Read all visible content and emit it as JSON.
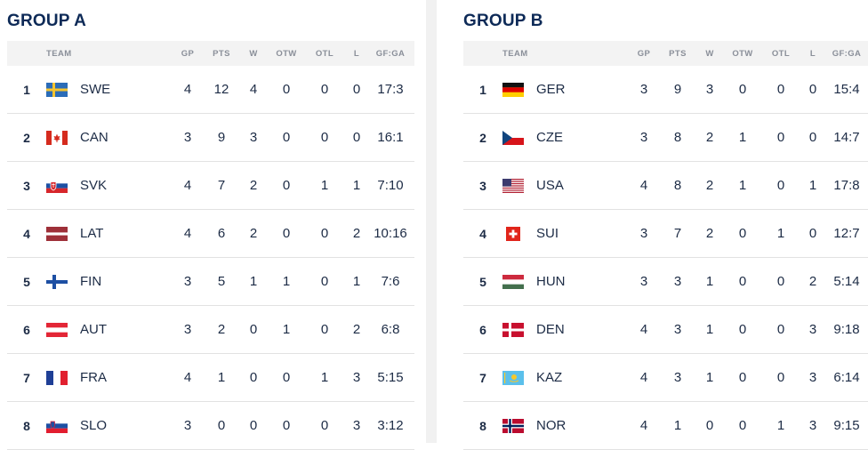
{
  "groups": [
    {
      "title": "GROUP A",
      "headers": {
        "team": "TEAM",
        "gp": "GP",
        "pts": "PTS",
        "w": "W",
        "otw": "OTW",
        "otl": "OTL",
        "l": "L",
        "gfga": "GF:GA"
      },
      "rows": [
        {
          "rank": "1",
          "flag": "sweden-flag",
          "team": "SWE",
          "gp": "4",
          "pts": "12",
          "w": "4",
          "otw": "0",
          "otl": "0",
          "l": "0",
          "gfga": "17:3"
        },
        {
          "rank": "2",
          "flag": "canada-flag",
          "team": "CAN",
          "gp": "3",
          "pts": "9",
          "w": "3",
          "otw": "0",
          "otl": "0",
          "l": "0",
          "gfga": "16:1"
        },
        {
          "rank": "3",
          "flag": "slovakia-flag",
          "team": "SVK",
          "gp": "4",
          "pts": "7",
          "w": "2",
          "otw": "0",
          "otl": "1",
          "l": "1",
          "gfga": "7:10"
        },
        {
          "rank": "4",
          "flag": "latvia-flag",
          "team": "LAT",
          "gp": "4",
          "pts": "6",
          "w": "2",
          "otw": "0",
          "otl": "0",
          "l": "2",
          "gfga": "10:16"
        },
        {
          "rank": "5",
          "flag": "finland-flag",
          "team": "FIN",
          "gp": "3",
          "pts": "5",
          "w": "1",
          "otw": "1",
          "otl": "0",
          "l": "1",
          "gfga": "7:6"
        },
        {
          "rank": "6",
          "flag": "austria-flag",
          "team": "AUT",
          "gp": "3",
          "pts": "2",
          "w": "0",
          "otw": "1",
          "otl": "0",
          "l": "2",
          "gfga": "6:8"
        },
        {
          "rank": "7",
          "flag": "france-flag",
          "team": "FRA",
          "gp": "4",
          "pts": "1",
          "w": "0",
          "otw": "0",
          "otl": "1",
          "l": "3",
          "gfga": "5:15"
        },
        {
          "rank": "8",
          "flag": "slovenia-flag",
          "team": "SLO",
          "gp": "3",
          "pts": "0",
          "w": "0",
          "otw": "0",
          "otl": "0",
          "l": "3",
          "gfga": "3:12"
        }
      ]
    },
    {
      "title": "GROUP B",
      "headers": {
        "team": "TEAM",
        "gp": "GP",
        "pts": "PTS",
        "w": "W",
        "otw": "OTW",
        "otl": "OTL",
        "l": "L",
        "gfga": "GF:GA"
      },
      "rows": [
        {
          "rank": "1",
          "flag": "germany-flag",
          "team": "GER",
          "gp": "3",
          "pts": "9",
          "w": "3",
          "otw": "0",
          "otl": "0",
          "l": "0",
          "gfga": "15:4"
        },
        {
          "rank": "2",
          "flag": "czechia-flag",
          "team": "CZE",
          "gp": "3",
          "pts": "8",
          "w": "2",
          "otw": "1",
          "otl": "0",
          "l": "0",
          "gfga": "14:7"
        },
        {
          "rank": "3",
          "flag": "usa-flag",
          "team": "USA",
          "gp": "4",
          "pts": "8",
          "w": "2",
          "otw": "1",
          "otl": "0",
          "l": "1",
          "gfga": "17:8"
        },
        {
          "rank": "4",
          "flag": "switzerland-flag",
          "team": "SUI",
          "gp": "3",
          "pts": "7",
          "w": "2",
          "otw": "0",
          "otl": "1",
          "l": "0",
          "gfga": "12:7"
        },
        {
          "rank": "5",
          "flag": "hungary-flag",
          "team": "HUN",
          "gp": "3",
          "pts": "3",
          "w": "1",
          "otw": "0",
          "otl": "0",
          "l": "2",
          "gfga": "5:14"
        },
        {
          "rank": "6",
          "flag": "denmark-flag",
          "team": "DEN",
          "gp": "4",
          "pts": "3",
          "w": "1",
          "otw": "0",
          "otl": "0",
          "l": "3",
          "gfga": "9:18"
        },
        {
          "rank": "7",
          "flag": "kazakhstan-flag",
          "team": "KAZ",
          "gp": "4",
          "pts": "3",
          "w": "1",
          "otw": "0",
          "otl": "0",
          "l": "3",
          "gfga": "6:14"
        },
        {
          "rank": "8",
          "flag": "norway-flag",
          "team": "NOR",
          "gp": "4",
          "pts": "1",
          "w": "0",
          "otw": "0",
          "otl": "1",
          "l": "3",
          "gfga": "9:15"
        }
      ]
    }
  ],
  "colors": {
    "title": "#0d2a57",
    "header_bg": "#f3f3f3",
    "row_border": "#e2e2e2"
  }
}
